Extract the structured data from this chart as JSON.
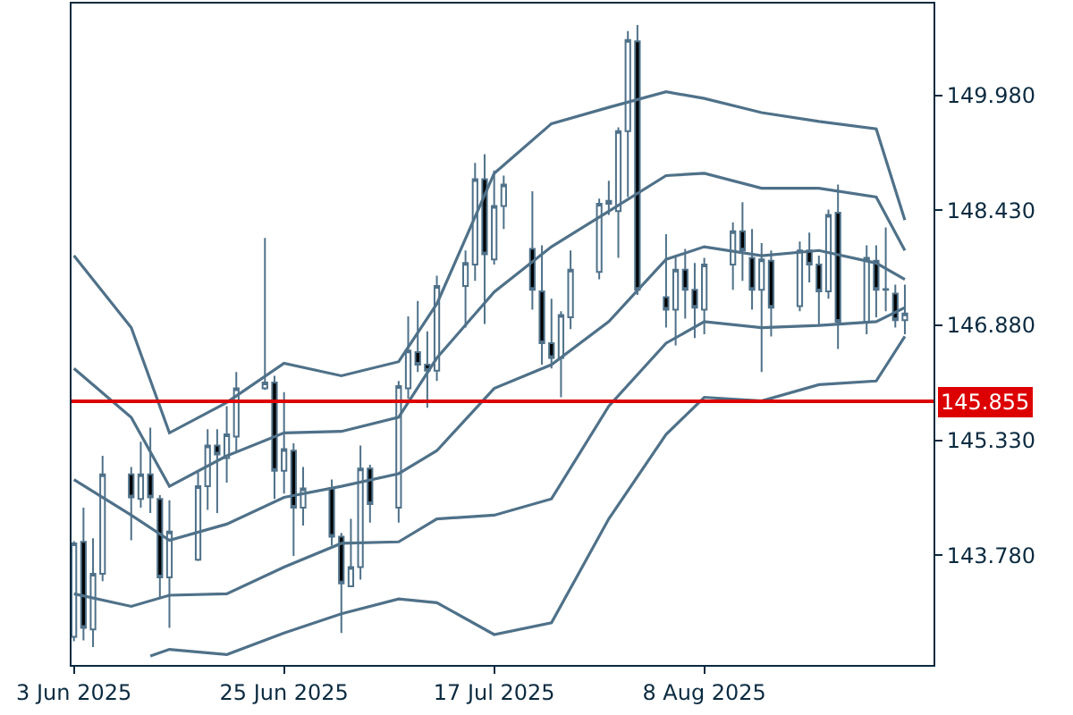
{
  "chart_data": {
    "type": "candlestick",
    "color": "#4f7189",
    "x": [
      "2025-06-03",
      "2025-06-04",
      "2025-06-05",
      "2025-06-06",
      "2025-06-09",
      "2025-06-10",
      "2025-06-11",
      "2025-06-12",
      "2025-06-13",
      "2025-06-16",
      "2025-06-17",
      "2025-06-18",
      "2025-06-19",
      "2025-06-20",
      "2025-06-23",
      "2025-06-24",
      "2025-06-25",
      "2025-06-26",
      "2025-06-27",
      "2025-06-30",
      "2025-07-01",
      "2025-07-02",
      "2025-07-03",
      "2025-07-04",
      "2025-07-07",
      "2025-07-08",
      "2025-07-09",
      "2025-07-10",
      "2025-07-11",
      "2025-07-14",
      "2025-07-15",
      "2025-07-16",
      "2025-07-17",
      "2025-07-18",
      "2025-07-21",
      "2025-07-22",
      "2025-07-23",
      "2025-07-24",
      "2025-07-25",
      "2025-07-28",
      "2025-07-29",
      "2025-07-30",
      "2025-07-31",
      "2025-08-01",
      "2025-08-04",
      "2025-08-05",
      "2025-08-06",
      "2025-08-07",
      "2025-08-08",
      "2025-08-11",
      "2025-08-12",
      "2025-08-13",
      "2025-08-14",
      "2025-08-15",
      "2025-08-18",
      "2025-08-19",
      "2025-08-20",
      "2025-08-21",
      "2025-08-22",
      "2025-08-25",
      "2025-08-26",
      "2025-08-27",
      "2025-08-28",
      "2025-08-29"
    ],
    "ohlc": [
      [
        142.68,
        143.97,
        142.62,
        143.94
      ],
      [
        143.96,
        144.42,
        142.63,
        142.8
      ],
      [
        142.78,
        144.01,
        142.54,
        143.53
      ],
      [
        143.53,
        145.12,
        143.43,
        144.87
      ],
      [
        144.87,
        144.97,
        143.98,
        144.56
      ],
      [
        144.54,
        145.31,
        144.42,
        144.87
      ],
      [
        144.87,
        145.5,
        144.35,
        144.56
      ],
      [
        144.54,
        144.59,
        143.21,
        143.48
      ],
      [
        143.48,
        144.52,
        142.8,
        144.1
      ],
      [
        143.72,
        144.9,
        143.7,
        144.71
      ],
      [
        144.71,
        145.48,
        144.39,
        145.26
      ],
      [
        145.26,
        145.48,
        144.35,
        145.14
      ],
      [
        145.09,
        145.79,
        144.76,
        145.41
      ],
      [
        145.38,
        146.25,
        145.17,
        146.03
      ],
      [
        146.03,
        148.06,
        146.01,
        146.11
      ],
      [
        146.11,
        146.2,
        144.54,
        144.92
      ],
      [
        144.92,
        145.98,
        144.61,
        145.21
      ],
      [
        145.19,
        145.29,
        143.77,
        144.42
      ],
      [
        144.42,
        144.97,
        144.18,
        144.68
      ],
      [
        144.68,
        144.8,
        143.91,
        144.03
      ],
      [
        144.03,
        144.08,
        142.73,
        143.4
      ],
      [
        143.36,
        144.27,
        143.36,
        143.62
      ],
      [
        143.62,
        145.26,
        143.45,
        144.95
      ],
      [
        144.95,
        145.0,
        144.22,
        144.47
      ],
      [
        144.42,
        146.13,
        144.22,
        146.06
      ],
      [
        146.03,
        147.0,
        145.89,
        146.54
      ],
      [
        146.52,
        147.21,
        146.25,
        146.35
      ],
      [
        146.35,
        146.8,
        145.77,
        146.27
      ],
      [
        146.27,
        147.55,
        146.13,
        147.41
      ],
      [
        147.41,
        147.89,
        146.85,
        147.72
      ],
      [
        147.7,
        149.07,
        147.48,
        148.85
      ],
      [
        148.85,
        149.19,
        146.9,
        147.84
      ],
      [
        147.77,
        148.97,
        147.7,
        148.49
      ],
      [
        148.49,
        148.9,
        148.18,
        148.78
      ],
      [
        147.91,
        148.69,
        147.09,
        147.36
      ],
      [
        147.34,
        147.96,
        146.35,
        146.64
      ],
      [
        146.64,
        147.24,
        146.3,
        146.44
      ],
      [
        146.44,
        147.07,
        145.91,
        147.02
      ],
      [
        146.99,
        147.89,
        146.83,
        147.63
      ],
      [
        147.6,
        148.59,
        147.5,
        148.52
      ],
      [
        148.52,
        148.83,
        148.37,
        148.56
      ],
      [
        148.42,
        149.55,
        147.79,
        149.5
      ],
      [
        149.5,
        150.85,
        148.61,
        150.73
      ],
      [
        150.71,
        150.93,
        147.29,
        147.36
      ],
      [
        147.26,
        148.11,
        146.85,
        147.09
      ],
      [
        147.09,
        147.82,
        146.61,
        147.63
      ],
      [
        147.63,
        147.91,
        146.97,
        147.36
      ],
      [
        147.36,
        147.72,
        146.71,
        147.12
      ],
      [
        147.09,
        147.79,
        146.76,
        147.7
      ],
      [
        147.7,
        148.27,
        147.36,
        148.15
      ],
      [
        148.15,
        148.54,
        147.48,
        147.89
      ],
      [
        147.79,
        148.18,
        147.09,
        147.36
      ],
      [
        147.36,
        147.99,
        146.25,
        147.77
      ],
      [
        147.75,
        147.89,
        146.73,
        147.12
      ],
      [
        147.14,
        148.01,
        147.07,
        147.89
      ],
      [
        147.89,
        148.13,
        147.46,
        147.7
      ],
      [
        147.7,
        147.82,
        146.88,
        147.34
      ],
      [
        147.34,
        148.44,
        147.24,
        148.37
      ],
      [
        148.4,
        148.78,
        146.56,
        146.93
      ],
      [
        146.93,
        147.96,
        146.76,
        147.79
      ],
      [
        147.75,
        147.96,
        146.99,
        147.36
      ],
      [
        147.36,
        148.2,
        147.07,
        147.37
      ],
      [
        147.31,
        147.43,
        146.85,
        146.95
      ],
      [
        146.95,
        147.43,
        146.76,
        147.04
      ]
    ],
    "series": [
      {
        "type": "line",
        "color": "#4f7189",
        "x": [
          "2025-06-03",
          "2025-06-09",
          "2025-06-13",
          "2025-06-19",
          "2025-06-25",
          "2025-07-01",
          "2025-07-07",
          "2025-07-11",
          "2025-07-17",
          "2025-07-23",
          "2025-07-29",
          "2025-08-04",
          "2025-08-08",
          "2025-08-14",
          "2025-08-20",
          "2025-08-26",
          "2025-08-29"
        ],
        "values": [
          147.82,
          146.85,
          145.43,
          145.84,
          146.37,
          146.2,
          146.39,
          147.17,
          148.93,
          149.6,
          149.82,
          150.03,
          149.94,
          149.75,
          149.63,
          149.53,
          148.3
        ]
      },
      {
        "type": "line",
        "color": "#4f7189",
        "x": [
          "2025-06-03",
          "2025-06-09",
          "2025-06-13",
          "2025-06-19",
          "2025-06-25",
          "2025-07-01",
          "2025-07-07",
          "2025-07-11",
          "2025-07-17",
          "2025-07-23",
          "2025-07-29",
          "2025-08-04",
          "2025-08-08",
          "2025-08-14",
          "2025-08-20",
          "2025-08-26",
          "2025-08-29"
        ],
        "values": [
          146.3,
          145.64,
          144.71,
          145.12,
          145.43,
          145.45,
          145.64,
          146.44,
          147.33,
          147.94,
          148.42,
          148.9,
          148.93,
          148.73,
          148.73,
          148.61,
          147.89
        ]
      },
      {
        "type": "line",
        "color": "#4f7189",
        "x": [
          "2025-06-03",
          "2025-06-09",
          "2025-06-13",
          "2025-06-19",
          "2025-06-25",
          "2025-07-01",
          "2025-07-07",
          "2025-07-11",
          "2025-07-17",
          "2025-07-23",
          "2025-07-29",
          "2025-08-04",
          "2025-08-08",
          "2025-08-14",
          "2025-08-20",
          "2025-08-26",
          "2025-08-29"
        ],
        "values": [
          144.8,
          144.32,
          143.98,
          144.2,
          144.56,
          144.71,
          144.88,
          145.19,
          146.03,
          146.35,
          146.93,
          147.77,
          147.94,
          147.82,
          147.89,
          147.72,
          147.5
        ]
      },
      {
        "type": "line",
        "color": "#4f7189",
        "x": [
          "2025-06-03",
          "2025-06-09",
          "2025-06-13",
          "2025-06-19",
          "2025-06-25",
          "2025-07-01",
          "2025-07-07",
          "2025-07-11",
          "2025-07-17",
          "2025-07-23",
          "2025-07-29",
          "2025-08-04",
          "2025-08-08",
          "2025-08-14",
          "2025-08-20",
          "2025-08-26",
          "2025-08-29"
        ],
        "values": [
          143.26,
          143.09,
          143.24,
          143.26,
          143.62,
          143.94,
          143.96,
          144.27,
          144.32,
          144.54,
          145.79,
          146.64,
          146.93,
          146.85,
          146.88,
          146.93,
          147.12
        ]
      },
      {
        "type": "line",
        "color": "#4f7189",
        "x": [
          "2025-06-11",
          "2025-06-13",
          "2025-06-19",
          "2025-06-25",
          "2025-07-01",
          "2025-07-07",
          "2025-07-11",
          "2025-07-17",
          "2025-07-23",
          "2025-07-29",
          "2025-08-04",
          "2025-08-08",
          "2025-08-14",
          "2025-08-20",
          "2025-08-26",
          "2025-08-29"
        ],
        "values": [
          142.42,
          142.51,
          142.44,
          142.73,
          142.99,
          143.19,
          143.14,
          142.71,
          142.87,
          144.27,
          145.41,
          145.91,
          145.86,
          146.08,
          146.13,
          146.73
        ]
      }
    ],
    "ref_lines": [
      {
        "axis": "y",
        "value": 145.855,
        "label": "145.855",
        "color": "#dd0000"
      }
    ],
    "xlim": [
      "2025-06-02T18:00",
      "2025-09-01"
    ],
    "xticks": [
      {
        "value": "2025-06-03",
        "label": "3 Jun 2025"
      },
      {
        "value": "2025-06-25",
        "label": "25 Jun 2025"
      },
      {
        "value": "2025-07-17",
        "label": "17 Jul 2025"
      },
      {
        "value": "2025-08-08",
        "label": "8 Aug 2025"
      }
    ],
    "ylim": [
      142.3,
      151.22
    ],
    "yticks": [
      {
        "value": 143.78,
        "label": "143.780"
      },
      {
        "value": 145.33,
        "label": "145.330"
      },
      {
        "value": 146.88,
        "label": "146.880"
      },
      {
        "value": 148.43,
        "label": "148.430"
      },
      {
        "value": 149.98,
        "label": "149.980"
      }
    ],
    "grid": false
  }
}
